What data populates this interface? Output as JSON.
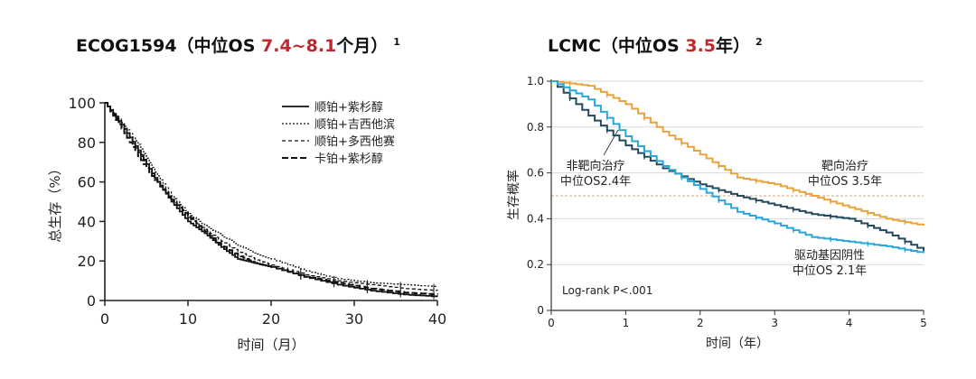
{
  "colors": {
    "red_highlight": "#c0282d",
    "targeted": "#e8a33a",
    "non_targeted": "#24495e",
    "driver_negative": "#29a7dc",
    "grid": "#d9d9d9",
    "median_line": "#d7a07a"
  },
  "chart_data": [
    {
      "type": "line",
      "title_prefix": "ECOG1594（中位OS ",
      "title_highlight": "7.4~8.1",
      "title_suffix": "个月）",
      "title_ref": "1",
      "xlabel": "时间（月）",
      "ylabel": "总生存（%）",
      "xlim": [
        0,
        40
      ],
      "ylim": [
        0,
        100
      ],
      "xticks": [
        "0",
        "10",
        "20",
        "30",
        "40"
      ],
      "yticks": [
        "0",
        "20",
        "40",
        "60",
        "80",
        "100"
      ],
      "grid": false,
      "legend_position": "top-right",
      "series": [
        {
          "name": "顺铂+紫杉醇",
          "style": "solid",
          "x": [
            0,
            2,
            4,
            6,
            8,
            10,
            12,
            14,
            16,
            18,
            20,
            24,
            28,
            32,
            36,
            40
          ],
          "y": [
            100,
            89,
            76,
            62,
            50,
            40,
            34,
            27,
            21,
            19,
            17,
            12,
            8,
            5,
            3,
            2
          ]
        },
        {
          "name": "顺铂+吉西他滨",
          "style": "dotted",
          "x": [
            0,
            2,
            4,
            6,
            8,
            10,
            12,
            14,
            16,
            18,
            20,
            24,
            28,
            32,
            36,
            40
          ],
          "y": [
            100,
            90,
            79,
            65,
            53,
            44,
            38,
            33,
            28,
            24,
            21,
            15,
            11,
            9,
            8,
            7
          ]
        },
        {
          "name": "顺铂+多西他赛",
          "style": "dashed",
          "x": [
            0,
            2,
            4,
            6,
            8,
            10,
            12,
            14,
            16,
            18,
            20,
            24,
            28,
            32,
            36,
            40
          ],
          "y": [
            100,
            88,
            75,
            62,
            51,
            42,
            36,
            30,
            25,
            21,
            18,
            13,
            10,
            8,
            6,
            5
          ]
        },
        {
          "name": "卡铂+紫杉醇",
          "style": "longdash",
          "x": [
            0,
            2,
            4,
            6,
            8,
            10,
            12,
            14,
            16,
            18,
            20,
            24,
            28,
            32,
            36,
            40
          ],
          "y": [
            100,
            87,
            73,
            61,
            51,
            43,
            35,
            28,
            23,
            19,
            17,
            12,
            9,
            6,
            4,
            3
          ]
        }
      ]
    },
    {
      "type": "line",
      "title_prefix": "LCMC（中位OS ",
      "title_highlight": "3.5",
      "title_suffix": "年）",
      "title_ref": "2",
      "xlabel": "时间（年）",
      "ylabel": "生存概率",
      "xlim": [
        0,
        5
      ],
      "ylim": [
        0,
        1
      ],
      "xticks": [
        "0",
        "1",
        "2",
        "3",
        "4",
        "5"
      ],
      "yticks": [
        "0",
        "0.2",
        "0.4",
        "0.6",
        "0.8",
        "1.0"
      ],
      "grid": true,
      "median_line": 0.5,
      "annotation": "Log-rank P<.001",
      "series": [
        {
          "key": "targeted",
          "label_line1": "靶向治疗",
          "label_line2": "中位OS 3.5年",
          "x": [
            0,
            0.5,
            1.0,
            1.5,
            2.0,
            2.5,
            3.0,
            3.5,
            4.0,
            4.5,
            5.0
          ],
          "y": [
            1.0,
            0.98,
            0.9,
            0.78,
            0.68,
            0.58,
            0.55,
            0.5,
            0.45,
            0.4,
            0.37
          ]
        },
        {
          "key": "non_targeted",
          "label_line1": "非靶向治疗",
          "label_line2": "中位OS2.4年",
          "x": [
            0,
            0.5,
            1.0,
            1.5,
            2.0,
            2.5,
            3.0,
            3.5,
            4.0,
            4.5,
            5.0
          ],
          "y": [
            1.0,
            0.85,
            0.72,
            0.62,
            0.55,
            0.5,
            0.46,
            0.42,
            0.4,
            0.34,
            0.26
          ]
        },
        {
          "key": "driver_negative",
          "label_line1": "驱动基因阴性",
          "label_line2": "中位OS 2.1年",
          "x": [
            0,
            0.5,
            1.0,
            1.5,
            2.0,
            2.5,
            3.0,
            3.5,
            4.0,
            4.5,
            5.0
          ],
          "y": [
            1.0,
            0.92,
            0.76,
            0.63,
            0.53,
            0.43,
            0.38,
            0.32,
            0.3,
            0.28,
            0.25
          ]
        }
      ]
    }
  ]
}
